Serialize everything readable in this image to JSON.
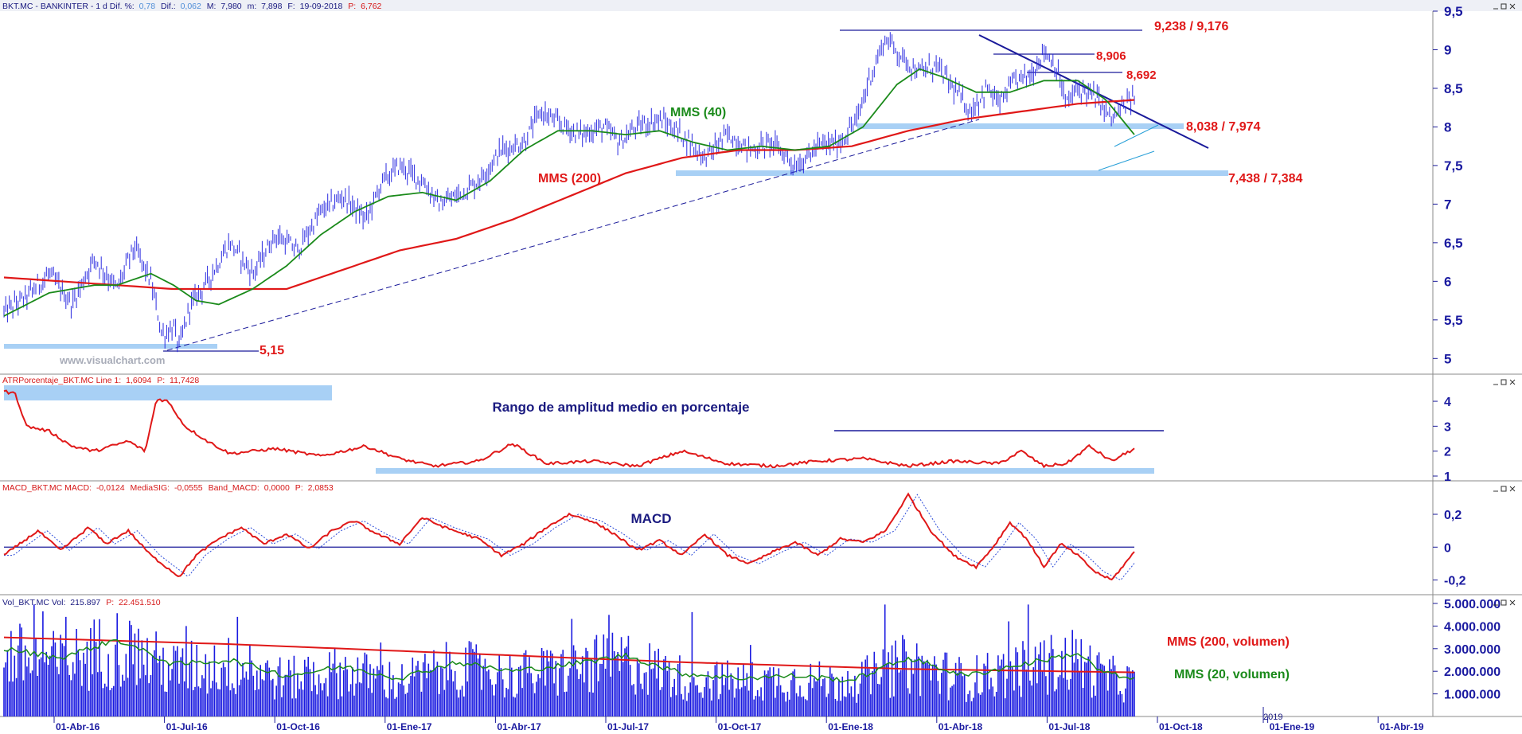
{
  "chart_data": {
    "type": "line",
    "x_tick_labels": [
      "01-Abr-16",
      "01-Jul-16",
      "01-Oct-16",
      "01-Ene-17",
      "01-Abr-17",
      "01-Jul-17",
      "01-Oct-17",
      "01-Ene-18",
      "01-Abr-18",
      "01-Jul-18",
      "01-Oct-18",
      "01-Ene-19",
      "01-Abr-19"
    ],
    "year_marker": "2019",
    "watermark": "www.visualchart.com",
    "panels": {
      "price": {
        "header": {
          "prefix": "BKT.MC - BANKINTER -  1 d  Dif. %:",
          "dif_pct": "0,78",
          "dif_label": "Dif.:",
          "dif": "0,062",
          "m_label": "M:",
          "m": "7,980",
          "mi_label": "m:",
          "mi": "7,898",
          "f_label": "F:",
          "f": "19-09-2018",
          "p_label": "P:",
          "p": "6,762"
        },
        "ylim": [
          4.9,
          9.5
        ],
        "y_ticks": [
          "5",
          "5,5",
          "6",
          "6,5",
          "7",
          "7,5",
          "8",
          "8,5",
          "9",
          "9,5"
        ],
        "labels": {
          "mms40": "MMS (40)",
          "mms200": "MMS (200)",
          "lvl1": "9,238 / 9,176",
          "lvl2": "8,906",
          "lvl3": "8,692",
          "lvl4": "8,038 / 7,974",
          "lvl5": "7,438 / 7,384",
          "lvl6": "5,15"
        },
        "close_anchors": [
          [
            0,
            5.6
          ],
          [
            0.02,
            5.8
          ],
          [
            0.04,
            6.1
          ],
          [
            0.06,
            5.7
          ],
          [
            0.08,
            6.3
          ],
          [
            0.1,
            5.9
          ],
          [
            0.115,
            6.45
          ],
          [
            0.13,
            6.0
          ],
          [
            0.14,
            5.3
          ],
          [
            0.15,
            5.4
          ],
          [
            0.155,
            5.15
          ],
          [
            0.165,
            5.7
          ],
          [
            0.18,
            6.0
          ],
          [
            0.2,
            6.5
          ],
          [
            0.22,
            6.1
          ],
          [
            0.24,
            6.6
          ],
          [
            0.26,
            6.4
          ],
          [
            0.28,
            6.9
          ],
          [
            0.3,
            7.1
          ],
          [
            0.32,
            6.8
          ],
          [
            0.335,
            7.3
          ],
          [
            0.35,
            7.5
          ],
          [
            0.37,
            7.3
          ],
          [
            0.385,
            7.0
          ],
          [
            0.4,
            7.1
          ],
          [
            0.42,
            7.3
          ],
          [
            0.44,
            7.7
          ],
          [
            0.46,
            7.8
          ],
          [
            0.475,
            8.2
          ],
          [
            0.49,
            8.05
          ],
          [
            0.51,
            7.9
          ],
          [
            0.53,
            8.0
          ],
          [
            0.545,
            7.8
          ],
          [
            0.56,
            8.0
          ],
          [
            0.58,
            8.1
          ],
          [
            0.6,
            7.9
          ],
          [
            0.62,
            7.6
          ],
          [
            0.64,
            7.9
          ],
          [
            0.66,
            7.7
          ],
          [
            0.68,
            7.8
          ],
          [
            0.7,
            7.5
          ],
          [
            0.71,
            7.6
          ],
          [
            0.72,
            7.75
          ],
          [
            0.74,
            7.8
          ],
          [
            0.755,
            8.1
          ],
          [
            0.765,
            8.6
          ],
          [
            0.78,
            9.15
          ],
          [
            0.795,
            8.9
          ],
          [
            0.81,
            8.7
          ],
          [
            0.825,
            8.8
          ],
          [
            0.84,
            8.5
          ],
          [
            0.855,
            8.2
          ],
          [
            0.87,
            8.5
          ],
          [
            0.88,
            8.3
          ],
          [
            0.895,
            8.6
          ],
          [
            0.91,
            8.7
          ],
          [
            0.92,
            9.0
          ],
          [
            0.93,
            8.8
          ],
          [
            0.94,
            8.3
          ],
          [
            0.95,
            8.5
          ],
          [
            0.965,
            8.4
          ],
          [
            0.98,
            8.1
          ],
          [
            1.0,
            8.4
          ]
        ],
        "x_span": [
          0.0,
          0.745
        ],
        "mms40_anchors": [
          [
            0,
            5.55
          ],
          [
            0.04,
            5.85
          ],
          [
            0.08,
            5.95
          ],
          [
            0.1,
            5.95
          ],
          [
            0.13,
            6.1
          ],
          [
            0.15,
            5.95
          ],
          [
            0.17,
            5.75
          ],
          [
            0.19,
            5.7
          ],
          [
            0.22,
            5.9
          ],
          [
            0.25,
            6.2
          ],
          [
            0.28,
            6.6
          ],
          [
            0.31,
            6.9
          ],
          [
            0.34,
            7.1
          ],
          [
            0.37,
            7.15
          ],
          [
            0.4,
            7.05
          ],
          [
            0.43,
            7.3
          ],
          [
            0.46,
            7.7
          ],
          [
            0.49,
            7.95
          ],
          [
            0.52,
            7.95
          ],
          [
            0.55,
            7.9
          ],
          [
            0.58,
            7.95
          ],
          [
            0.61,
            7.8
          ],
          [
            0.64,
            7.7
          ],
          [
            0.67,
            7.75
          ],
          [
            0.7,
            7.7
          ],
          [
            0.73,
            7.75
          ],
          [
            0.76,
            8.0
          ],
          [
            0.79,
            8.55
          ],
          [
            0.81,
            8.75
          ],
          [
            0.83,
            8.65
          ],
          [
            0.86,
            8.45
          ],
          [
            0.89,
            8.45
          ],
          [
            0.92,
            8.6
          ],
          [
            0.95,
            8.6
          ],
          [
            0.975,
            8.35
          ],
          [
            1.0,
            7.9
          ]
        ],
        "mms200_anchors": [
          [
            0,
            6.05
          ],
          [
            0.05,
            6.0
          ],
          [
            0.1,
            5.95
          ],
          [
            0.15,
            5.9
          ],
          [
            0.2,
            5.9
          ],
          [
            0.25,
            5.9
          ],
          [
            0.3,
            6.15
          ],
          [
            0.35,
            6.4
          ],
          [
            0.4,
            6.55
          ],
          [
            0.45,
            6.8
          ],
          [
            0.5,
            7.1
          ],
          [
            0.55,
            7.4
          ],
          [
            0.6,
            7.6
          ],
          [
            0.65,
            7.7
          ],
          [
            0.7,
            7.7
          ],
          [
            0.75,
            7.75
          ],
          [
            0.8,
            7.95
          ],
          [
            0.85,
            8.1
          ],
          [
            0.9,
            8.2
          ],
          [
            0.95,
            8.3
          ],
          [
            1.0,
            8.35
          ]
        ]
      },
      "atr": {
        "header": {
          "prefix": "ATRPorcentaje_BKT.MC  Line 1:",
          "line1": "1,6094",
          "p_label": "P:",
          "p": "11,7428"
        },
        "title": "Rango de amplitud medio en porcentaje",
        "ylim": [
          1,
          4.8
        ],
        "y_ticks": [
          "1",
          "2",
          "3",
          "4"
        ],
        "anchors": [
          [
            0,
            4.4
          ],
          [
            0.01,
            4.3
          ],
          [
            0.02,
            3.0
          ],
          [
            0.04,
            2.8
          ],
          [
            0.06,
            2.2
          ],
          [
            0.08,
            2.0
          ],
          [
            0.11,
            2.4
          ],
          [
            0.125,
            2.0
          ],
          [
            0.135,
            4.1
          ],
          [
            0.145,
            4.0
          ],
          [
            0.16,
            3.0
          ],
          [
            0.18,
            2.4
          ],
          [
            0.2,
            1.9
          ],
          [
            0.24,
            2.1
          ],
          [
            0.28,
            1.8
          ],
          [
            0.32,
            2.2
          ],
          [
            0.35,
            1.7
          ],
          [
            0.38,
            1.4
          ],
          [
            0.42,
            1.6
          ],
          [
            0.45,
            2.3
          ],
          [
            0.48,
            1.5
          ],
          [
            0.52,
            1.6
          ],
          [
            0.56,
            1.4
          ],
          [
            0.6,
            2.0
          ],
          [
            0.64,
            1.5
          ],
          [
            0.68,
            1.4
          ],
          [
            0.72,
            1.6
          ],
          [
            0.76,
            1.7
          ],
          [
            0.8,
            1.4
          ],
          [
            0.84,
            1.6
          ],
          [
            0.88,
            1.5
          ],
          [
            0.9,
            2.0
          ],
          [
            0.92,
            1.4
          ],
          [
            0.94,
            1.5
          ],
          [
            0.96,
            2.2
          ],
          [
            0.98,
            1.6
          ],
          [
            1.0,
            2.1
          ]
        ],
        "x_span": [
          0.0,
          0.745
        ],
        "anchors2": [
          [
            0.745,
            2.1
          ],
          [
            0.76,
            2.6
          ],
          [
            0.78,
            2.0
          ],
          [
            0.8,
            1.6
          ],
          [
            0.82,
            1.4
          ],
          [
            0.84,
            1.7
          ],
          [
            0.86,
            1.3
          ],
          [
            0.875,
            1.7
          ],
          [
            0.895,
            2.6
          ],
          [
            0.91,
            2.3
          ],
          [
            0.93,
            2.0
          ],
          [
            0.95,
            2.2
          ],
          [
            0.97,
            1.9
          ],
          [
            0.985,
            1.6
          ],
          [
            1.0,
            1.65
          ]
        ]
      },
      "macd": {
        "header": {
          "prefix": "MACD_BKT.MC  MACD:",
          "macd": "-0,0124",
          "sig_label": "MediaSIG:",
          "sig": "-0,0555",
          "band_label": "Band_MACD:",
          "band": "0,0000",
          "p_label": "P:",
          "p": "2,0853"
        },
        "title": "MACD",
        "ylim": [
          -0.27,
          0.36
        ],
        "y_ticks": [
          "-0,2",
          "0",
          "0,2"
        ],
        "anchors": [
          [
            0,
            -0.05
          ],
          [
            0.03,
            0.1
          ],
          [
            0.05,
            -0.02
          ],
          [
            0.075,
            0.12
          ],
          [
            0.09,
            0.02
          ],
          [
            0.11,
            0.1
          ],
          [
            0.13,
            -0.05
          ],
          [
            0.155,
            -0.18
          ],
          [
            0.17,
            -0.05
          ],
          [
            0.19,
            0.05
          ],
          [
            0.21,
            0.12
          ],
          [
            0.23,
            0.02
          ],
          [
            0.25,
            0.08
          ],
          [
            0.27,
            -0.01
          ],
          [
            0.29,
            0.1
          ],
          [
            0.31,
            0.16
          ],
          [
            0.33,
            0.08
          ],
          [
            0.35,
            0.02
          ],
          [
            0.37,
            0.18
          ],
          [
            0.39,
            0.12
          ],
          [
            0.42,
            0.05
          ],
          [
            0.44,
            -0.05
          ],
          [
            0.46,
            0.02
          ],
          [
            0.48,
            0.12
          ],
          [
            0.5,
            0.2
          ],
          [
            0.52,
            0.16
          ],
          [
            0.54,
            0.08
          ],
          [
            0.56,
            -0.02
          ],
          [
            0.58,
            0.04
          ],
          [
            0.6,
            -0.05
          ],
          [
            0.62,
            0.08
          ],
          [
            0.64,
            -0.05
          ],
          [
            0.66,
            -0.1
          ],
          [
            0.68,
            -0.03
          ],
          [
            0.7,
            0.03
          ],
          [
            0.72,
            -0.05
          ],
          [
            0.74,
            0.05
          ],
          [
            0.76,
            0.03
          ],
          [
            0.78,
            0.1
          ],
          [
            0.8,
            0.32
          ],
          [
            0.82,
            0.1
          ],
          [
            0.84,
            -0.05
          ],
          [
            0.86,
            -0.12
          ],
          [
            0.875,
            0.0
          ],
          [
            0.89,
            0.15
          ],
          [
            0.905,
            0.05
          ],
          [
            0.92,
            -0.12
          ],
          [
            0.935,
            0.02
          ],
          [
            0.95,
            -0.05
          ],
          [
            0.965,
            -0.15
          ],
          [
            0.98,
            -0.2
          ],
          [
            1.0,
            -0.03
          ]
        ],
        "x_span": [
          0.0,
          0.745
        ]
      },
      "vol": {
        "header": {
          "prefix": "Vol_BKT.MC  Vol:",
          "vol": "215.897",
          "p_label": "P:",
          "p": "22.451.510"
        },
        "ylim": [
          0,
          5000000
        ],
        "y_ticks": [
          "1.000.000",
          "2.000.000",
          "3.000.000",
          "4.000.000",
          "5.000.000"
        ],
        "labels": {
          "mms200": "MMS (200, volumen)",
          "mms20": "MMS (20, volumen)"
        },
        "mms200_anchors": [
          [
            0,
            3500000
          ],
          [
            0.2,
            3200000
          ],
          [
            0.4,
            2800000
          ],
          [
            0.6,
            2400000
          ],
          [
            0.8,
            2100000
          ],
          [
            1.0,
            1950000
          ]
        ],
        "mms20_anchors": [
          [
            0,
            3000000
          ],
          [
            0.05,
            2600000
          ],
          [
            0.1,
            3400000
          ],
          [
            0.15,
            2300000
          ],
          [
            0.2,
            2500000
          ],
          [
            0.25,
            1800000
          ],
          [
            0.3,
            2200000
          ],
          [
            0.35,
            1700000
          ],
          [
            0.4,
            2400000
          ],
          [
            0.45,
            2000000
          ],
          [
            0.5,
            2300000
          ],
          [
            0.55,
            2700000
          ],
          [
            0.6,
            1900000
          ],
          [
            0.65,
            1700000
          ],
          [
            0.7,
            1800000
          ],
          [
            0.75,
            1600000
          ],
          [
            0.8,
            2600000
          ],
          [
            0.85,
            1800000
          ],
          [
            0.9,
            2300000
          ],
          [
            0.95,
            2800000
          ],
          [
            0.97,
            2000000
          ],
          [
            1.0,
            1600000
          ]
        ],
        "x_span": [
          0.0,
          0.745
        ]
      }
    }
  }
}
